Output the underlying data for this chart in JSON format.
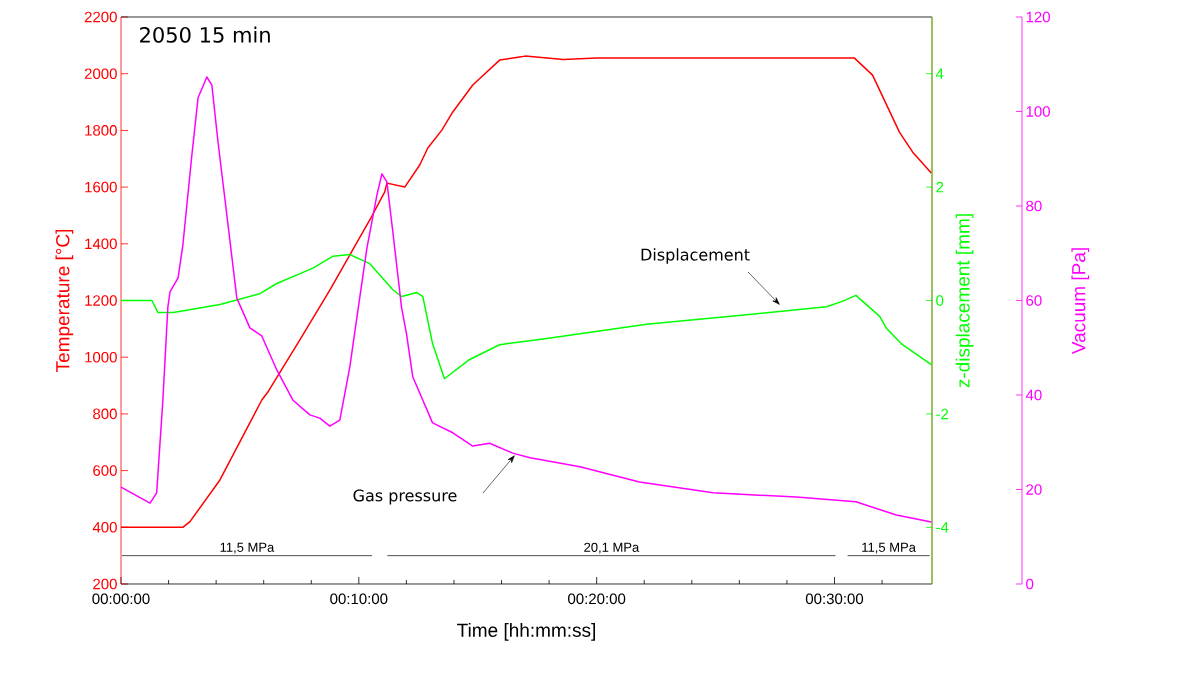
{
  "chart_data": {
    "type": "line",
    "title": "2050 15 min",
    "xlabel": "Time [hh:mm:ss]",
    "ylabel": "Temperature [°C]",
    "y2label": "z-displacement [mm]",
    "y3label": "Vacuum [Pa]",
    "xlim": [
      0,
      34.1
    ],
    "ylim": [
      200,
      2200
    ],
    "y2lim": [
      -5,
      5
    ],
    "y3lim": [
      0,
      120
    ],
    "xticks": [
      {
        "value": 0,
        "label": "00:00:00"
      },
      {
        "value": 2,
        "label": null
      },
      {
        "value": 4,
        "label": null
      },
      {
        "value": 6,
        "label": null
      },
      {
        "value": 8,
        "label": null
      },
      {
        "value": 10,
        "label": "00:10:00"
      },
      {
        "value": 12,
        "label": null
      },
      {
        "value": 14,
        "label": null
      },
      {
        "value": 16,
        "label": null
      },
      {
        "value": 18,
        "label": null
      },
      {
        "value": 20,
        "label": "00:20:00"
      },
      {
        "value": 22,
        "label": null
      },
      {
        "value": 24,
        "label": null
      },
      {
        "value": 26,
        "label": null
      },
      {
        "value": 28,
        "label": null
      },
      {
        "value": 30,
        "label": "00:30:00"
      },
      {
        "value": 32,
        "label": null
      }
    ],
    "yticks": [
      200,
      400,
      600,
      800,
      1000,
      1200,
      1400,
      1600,
      1800,
      2000,
      2200
    ],
    "y2ticks": [
      -4,
      -2,
      0,
      2,
      4
    ],
    "y3ticks": [
      0,
      20,
      40,
      60,
      80,
      100,
      120
    ],
    "series": [
      {
        "color": "#ff0000",
        "x": [
          0,
          2.6,
          2.9,
          4.16,
          5.92,
          6.2,
          7.52,
          8.78,
          10.46,
          11.09,
          11.18,
          11.93,
          12.56,
          12.9,
          13.49,
          13.95,
          14.79,
          15.92,
          16.76,
          17.0,
          18.6,
          20.0,
          25.0,
          30.84,
          31.6,
          32.73,
          33.28,
          34.07
        ],
        "values": [
          400,
          400,
          420,
          567,
          849,
          880,
          1061,
          1237,
          1484,
          1583,
          1614,
          1600,
          1678,
          1738,
          1801,
          1865,
          1960,
          2048,
          2059,
          2062,
          2050,
          2055,
          2055,
          2055,
          1995,
          1794,
          1724,
          1650
        ]
      },
      {
        "color": "#00ff00",
        "axis": "y2",
        "x": [
          0,
          1.3,
          1.55,
          2.2,
          4.16,
          5.84,
          6.55,
          8.07,
          8.9,
          9.62,
          10.46,
          11.43,
          11.8,
          12.44,
          12.69,
          13.1,
          13.6,
          14.66,
          15.92,
          17.9,
          22.1,
          26.3,
          29.66,
          30.3,
          30.9,
          31.9,
          32.2,
          32.86,
          34.07
        ],
        "values": [
          0.0,
          0.0,
          -0.21,
          -0.21,
          -0.07,
          0.12,
          0.3,
          0.57,
          0.78,
          0.81,
          0.65,
          0.19,
          0.07,
          0.14,
          0.07,
          -0.76,
          -1.38,
          -1.04,
          -0.78,
          -0.67,
          -0.42,
          -0.25,
          -0.11,
          -0.02,
          0.09,
          -0.28,
          -0.5,
          -0.78,
          -1.13
        ]
      },
      {
        "color": "#ff00ff",
        "axis": "y3",
        "x": [
          0,
          1.22,
          1.5,
          1.76,
          1.97,
          2.06,
          2.4,
          2.6,
          2.98,
          3.24,
          3.61,
          3.82,
          4.08,
          4.45,
          4.87,
          5.42,
          5.92,
          6.55,
          7.23,
          7.94,
          8.36,
          8.78,
          9.2,
          9.62,
          9.92,
          10.34,
          10.76,
          10.97,
          11.18,
          11.43,
          11.8,
          12.0,
          12.27,
          13.1,
          13.95,
          14.79,
          15.5,
          16.47,
          17.2,
          19.3,
          21.8,
          24.9,
          28.4,
          30.9,
          32.6,
          34.07
        ],
        "values": [
          20.5,
          17.1,
          19.3,
          38.9,
          58.6,
          61.8,
          64.8,
          71.7,
          90.8,
          102.9,
          107.3,
          105.6,
          93.5,
          78.1,
          60.5,
          54.2,
          52.5,
          45.3,
          38.9,
          35.8,
          35.1,
          33.4,
          34.7,
          45.9,
          56.5,
          71.1,
          82.3,
          86.8,
          85.1,
          74.5,
          58.4,
          53.1,
          43.8,
          34.1,
          32.0,
          29.2,
          29.8,
          27.7,
          26.7,
          24.8,
          21.6,
          19.3,
          18.4,
          17.4,
          14.6,
          13.1
        ]
      },
      {
        "name": "11,5 MPa",
        "color": "#000000",
        "x": [
          0.04,
          10.55
        ],
        "values": [
          300,
          300
        ]
      },
      {
        "name": "20,1 MPa",
        "color": "#000000",
        "x": [
          11.2,
          30.04
        ],
        "values": [
          300,
          300
        ]
      },
      {
        "name": "11,5 MPa",
        "color": "#000000",
        "x": [
          30.55,
          34.0
        ],
        "values": [
          300,
          300
        ]
      }
    ],
    "annotations": [
      "Displacement",
      "Gas pressure"
    ]
  }
}
